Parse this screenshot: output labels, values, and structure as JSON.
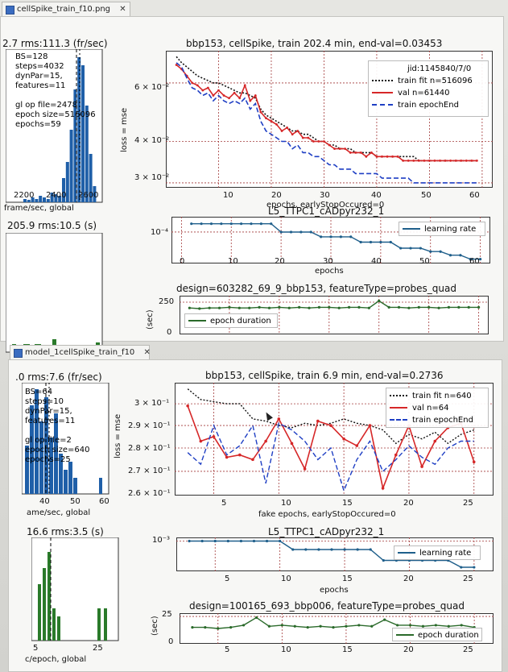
{
  "tabs": {
    "top": {
      "label": "cellSpike_train_f10.png",
      "close": "✕"
    },
    "bottom": {
      "label": "model_1cellSpike_train_f10",
      "close": "✕"
    }
  },
  "top": {
    "left_hist1": {
      "title": "2.7 rms:111.3 (fr/sec)",
      "info": [
        "BS=128",
        "steps=4032",
        "dynPar=15,",
        "features=11",
        "",
        "gl op file=2478",
        "epoch size=516096",
        "epochs=59"
      ],
      "xticks": [
        "2200",
        "2400",
        "2600"
      ],
      "xlabel": "frame/sec,  global"
    },
    "left_hist2": {
      "title": "205.9 rms:10.5 (s)"
    },
    "loss": {
      "title": "bbp153, cellSpike, train 202.4 min, end-val=0.03453",
      "ylabel": "loss = mse",
      "xlabel": "epochs, earlyStopOccured=0",
      "yticks": [
        "6 × 10⁻²",
        "4 × 10⁻²",
        "3 × 10⁻²"
      ],
      "xticks": [
        "10",
        "20",
        "30",
        "40",
        "50",
        "60"
      ],
      "legend": {
        "header": "jid:1145840/7/0",
        "items": [
          "train fit n=516096",
          "val n=61440",
          "train epochEnd"
        ]
      }
    },
    "lr": {
      "title": "L5_TTPC1_cADpyr232_1",
      "yticks": [
        "10⁻⁴"
      ],
      "xticks": [
        "0",
        "10",
        "20",
        "30",
        "40",
        "50",
        "60"
      ],
      "xlabel": "epochs",
      "legend": "learning rate"
    },
    "dur": {
      "title": "design=603282_69_9_bbp153, featureType=probes_quad",
      "ylabel": "(sec)",
      "yticks": [
        "250",
        "0"
      ],
      "legend": "epoch duration"
    }
  },
  "bottom": {
    "left_hist1": {
      "title": ".0 rms:7.6 (fr/sec)",
      "info": [
        "BS=64",
        "steps=10",
        "dynPar=15,",
        "features=11",
        "",
        "gl op file=2",
        "epoch size=640",
        "epochs=25"
      ],
      "xticks": [
        "40",
        "50",
        "60"
      ],
      "xlabel": "ame/sec,  global"
    },
    "left_hist2": {
      "title": "16.6 rms:3.5 (s)",
      "xticks": [
        "5",
        "25"
      ],
      "xlabel": "c/epoch,  global"
    },
    "loss": {
      "title": "bbp153, cellSpike, train 6.9 min, end-val=0.2736",
      "ylabel": "loss = mse",
      "xlabel": "fake epochs, earlyStopOccured=0",
      "yticks": [
        "3 × 10⁻¹",
        "2.9 × 10⁻¹",
        "2.8 × 10⁻¹",
        "2.7 × 10⁻¹",
        "2.6 × 10⁻¹"
      ],
      "xticks": [
        "5",
        "10",
        "15",
        "20",
        "25"
      ],
      "legend": {
        "items": [
          "train fit n=640",
          "val n=64",
          "train epochEnd"
        ]
      }
    },
    "lr": {
      "title": "L5_TTPC1_cADpyr232_1",
      "yticks": [
        "10⁻³"
      ],
      "xticks": [
        "5",
        "10",
        "15",
        "20",
        "25"
      ],
      "xlabel": "epochs",
      "legend": "learning rate"
    },
    "dur": {
      "title": "design=100165_693_bbp006, featureType=probes_quad",
      "ylabel": "(sec)",
      "yticks": [
        "25",
        "0"
      ],
      "xticks": [
        "5",
        "10",
        "15",
        "20",
        "25"
      ],
      "legend": "epoch duration"
    }
  },
  "colors": {
    "train_fit": "#111111",
    "val": "#d62728",
    "epoch_end": "#1f3fc4",
    "lr": "#1f5f8b",
    "dur": "#2a6a2a",
    "hist_blue": "#1f5fa8",
    "hist_green": "#2a7a2a",
    "grid": "#a33a3a"
  },
  "chart_data": [
    {
      "type": "line",
      "title": "bbp153, cellSpike, train 202.4 min, end-val=0.03453",
      "xlabel": "epochs, earlyStopOccured=0",
      "ylabel": "loss = mse",
      "yscale": "log",
      "xlim": [
        0,
        62
      ],
      "ylim": [
        0.029,
        0.075
      ],
      "grid": true,
      "legend_position": "top-right",
      "x": [
        2,
        3,
        4,
        5,
        6,
        7,
        8,
        9,
        10,
        11,
        12,
        13,
        14,
        15,
        16,
        17,
        18,
        19,
        20,
        21,
        22,
        23,
        24,
        25,
        26,
        27,
        28,
        29,
        30,
        31,
        32,
        33,
        34,
        35,
        36,
        37,
        38,
        39,
        40,
        41,
        42,
        43,
        44,
        45,
        46,
        47,
        48,
        49,
        50,
        51,
        52,
        53,
        54,
        55,
        56,
        57,
        58,
        59
      ],
      "series": [
        {
          "name": "train fit n=516096",
          "values": [
            0.072,
            0.069,
            0.067,
            0.065,
            0.063,
            0.062,
            0.061,
            0.06,
            0.06,
            0.059,
            0.058,
            0.057,
            0.056,
            0.056,
            0.055,
            0.054,
            0.05,
            0.048,
            0.047,
            0.046,
            0.045,
            0.044,
            0.043,
            0.043,
            0.042,
            0.042,
            0.041,
            0.04,
            0.04,
            0.039,
            0.039,
            0.038,
            0.038,
            0.038,
            0.037,
            0.037,
            0.037,
            0.037,
            0.036,
            0.036,
            0.036,
            0.036,
            0.036,
            0.036,
            0.036,
            0.036,
            0.035,
            0.035,
            0.035,
            0.035,
            0.035,
            0.035,
            0.035,
            0.035,
            0.035,
            0.035,
            0.035,
            0.035
          ]
        },
        {
          "name": "val n=61440",
          "values": [
            0.068,
            0.066,
            0.063,
            0.06,
            0.059,
            0.057,
            0.058,
            0.055,
            0.057,
            0.055,
            0.054,
            0.056,
            0.054,
            0.059,
            0.053,
            0.055,
            0.049,
            0.047,
            0.046,
            0.045,
            0.043,
            0.044,
            0.042,
            0.043,
            0.041,
            0.041,
            0.04,
            0.04,
            0.04,
            0.039,
            0.038,
            0.038,
            0.038,
            0.037,
            0.037,
            0.037,
            0.036,
            0.037,
            0.036,
            0.036,
            0.036,
            0.036,
            0.036,
            0.035,
            0.035,
            0.035,
            0.035,
            0.035,
            0.035,
            0.035,
            0.035,
            0.035,
            0.035,
            0.035,
            0.035,
            0.035,
            0.035,
            0.035
          ]
        },
        {
          "name": "train epochEnd",
          "values": [
            0.069,
            0.067,
            0.062,
            0.058,
            0.057,
            0.055,
            0.056,
            0.053,
            0.055,
            0.053,
            0.052,
            0.053,
            0.052,
            0.054,
            0.05,
            0.052,
            0.046,
            0.043,
            0.042,
            0.041,
            0.04,
            0.04,
            0.038,
            0.039,
            0.037,
            0.037,
            0.036,
            0.036,
            0.035,
            0.034,
            0.034,
            0.033,
            0.033,
            0.033,
            0.032,
            0.032,
            0.032,
            0.032,
            0.032,
            0.031,
            0.031,
            0.031,
            0.031,
            0.031,
            0.031,
            0.03,
            0.03,
            0.03,
            0.03,
            0.03,
            0.03,
            0.03,
            0.03,
            0.03,
            0.03,
            0.03,
            0.03,
            0.03
          ]
        }
      ]
    },
    {
      "type": "line",
      "title": "L5_TTPC1_cADpyr232_1",
      "xlabel": "epochs",
      "yscale": "log",
      "xlim": [
        -2,
        62
      ],
      "grid": true,
      "legend_position": "top-right",
      "series": [
        {
          "name": "learning rate",
          "x": [
            2,
            4,
            6,
            8,
            10,
            12,
            14,
            16,
            18,
            20,
            22,
            24,
            26,
            28,
            30,
            32,
            34,
            36,
            38,
            40,
            42,
            44,
            46,
            48,
            50,
            52,
            54,
            56,
            58,
            60
          ],
          "values": [
            0.00012,
            0.00012,
            0.00012,
            0.00012,
            0.00012,
            0.00012,
            0.00012,
            0.00012,
            0.00012,
            0.0001,
            0.0001,
            0.0001,
            0.0001,
            9e-05,
            9e-05,
            9e-05,
            9e-05,
            8e-05,
            8e-05,
            8e-05,
            8e-05,
            7e-05,
            7e-05,
            7e-05,
            6.5e-05,
            6.5e-05,
            6e-05,
            6e-05,
            5.5e-05,
            5.5e-05
          ]
        }
      ]
    },
    {
      "type": "line",
      "title": "design=603282_69_9_bbp153, featureType=probes_quad",
      "ylabel": "(sec)",
      "ylim": [
        0,
        300
      ],
      "xlim": [
        0,
        62
      ],
      "grid": true,
      "legend_position": "bottom-left",
      "series": [
        {
          "name": "epoch duration",
          "x": [
            2,
            4,
            6,
            8,
            10,
            12,
            14,
            16,
            18,
            20,
            22,
            24,
            26,
            28,
            30,
            32,
            34,
            36,
            38,
            40,
            42,
            44,
            46,
            48,
            50,
            52,
            54,
            56,
            58,
            60
          ],
          "values": [
            205,
            200,
            205,
            205,
            210,
            205,
            205,
            210,
            205,
            210,
            205,
            210,
            205,
            210,
            210,
            205,
            210,
            210,
            205,
            260,
            210,
            210,
            205,
            210,
            210,
            205,
            210,
            210,
            210,
            210
          ]
        }
      ]
    },
    {
      "type": "line",
      "title": "bbp153, cellSpike, train 6.9 min, end-val=0.2736",
      "xlabel": "fake epochs, earlyStopOccured=0",
      "ylabel": "loss = mse",
      "yscale": "log",
      "xlim": [
        2,
        26.5
      ],
      "ylim": [
        0.26,
        0.31
      ],
      "grid": true,
      "legend_position": "top-right",
      "x": [
        3,
        4,
        5,
        6,
        7,
        8,
        9,
        10,
        11,
        12,
        13,
        14,
        15,
        16,
        17,
        18,
        19,
        20,
        21,
        22,
        23,
        24,
        25
      ],
      "series": [
        {
          "name": "train fit n=640",
          "values": [
            0.307,
            0.302,
            0.301,
            0.3,
            0.3,
            0.293,
            0.292,
            0.29,
            0.289,
            0.291,
            0.29,
            0.291,
            0.293,
            0.291,
            0.29,
            0.288,
            0.282,
            0.286,
            0.284,
            0.287,
            0.282,
            0.286,
            0.288
          ]
        },
        {
          "name": "val n=64",
          "values": [
            0.299,
            0.283,
            0.285,
            0.276,
            0.277,
            0.275,
            0.283,
            0.293,
            0.282,
            0.271,
            0.292,
            0.29,
            0.284,
            0.281,
            0.29,
            0.263,
            0.277,
            0.29,
            0.272,
            0.283,
            0.289,
            0.291,
            0.274
          ]
        },
        {
          "name": "train epochEnd",
          "values": [
            0.278,
            0.273,
            0.29,
            0.277,
            0.281,
            0.29,
            0.265,
            0.291,
            0.288,
            0.283,
            0.275,
            0.28,
            0.262,
            0.275,
            0.283,
            0.27,
            0.275,
            0.281,
            0.276,
            0.273,
            0.28,
            0.283,
            0.283
          ]
        }
      ]
    },
    {
      "type": "line",
      "title": "L5_TTPC1_cADpyr232_1",
      "xlabel": "epochs",
      "yscale": "log",
      "xlim": [
        2,
        26.5
      ],
      "grid": true,
      "legend_position": "top-right",
      "series": [
        {
          "name": "learning rate",
          "x": [
            3,
            4,
            5,
            6,
            7,
            8,
            9,
            10,
            11,
            12,
            13,
            14,
            15,
            16,
            17,
            18,
            19,
            20,
            21,
            22,
            23,
            24,
            25
          ],
          "values": [
            0.001,
            0.001,
            0.001,
            0.001,
            0.001,
            0.001,
            0.001,
            0.001,
            0.0008,
            0.0008,
            0.0008,
            0.0008,
            0.0008,
            0.0008,
            0.0008,
            0.0006,
            0.0006,
            0.0006,
            0.0006,
            0.0006,
            0.0006,
            0.0005,
            0.0005
          ]
        }
      ]
    },
    {
      "type": "line",
      "title": "design=100165_693_bbp006, featureType=probes_quad",
      "ylabel": "(sec)",
      "ylim": [
        0,
        28
      ],
      "xlim": [
        2,
        26.5
      ],
      "grid": true,
      "legend_position": "bottom-right",
      "series": [
        {
          "name": "epoch duration",
          "x": [
            3,
            4,
            5,
            6,
            7,
            8,
            9,
            10,
            11,
            12,
            13,
            14,
            15,
            16,
            17,
            18,
            19,
            20,
            21,
            22,
            23,
            24,
            25
          ],
          "values": [
            15,
            15,
            14,
            15,
            17,
            24,
            16,
            17,
            16,
            15,
            16,
            15,
            16,
            17,
            16,
            22,
            17,
            17,
            16,
            17,
            16,
            17,
            15
          ]
        }
      ]
    }
  ]
}
